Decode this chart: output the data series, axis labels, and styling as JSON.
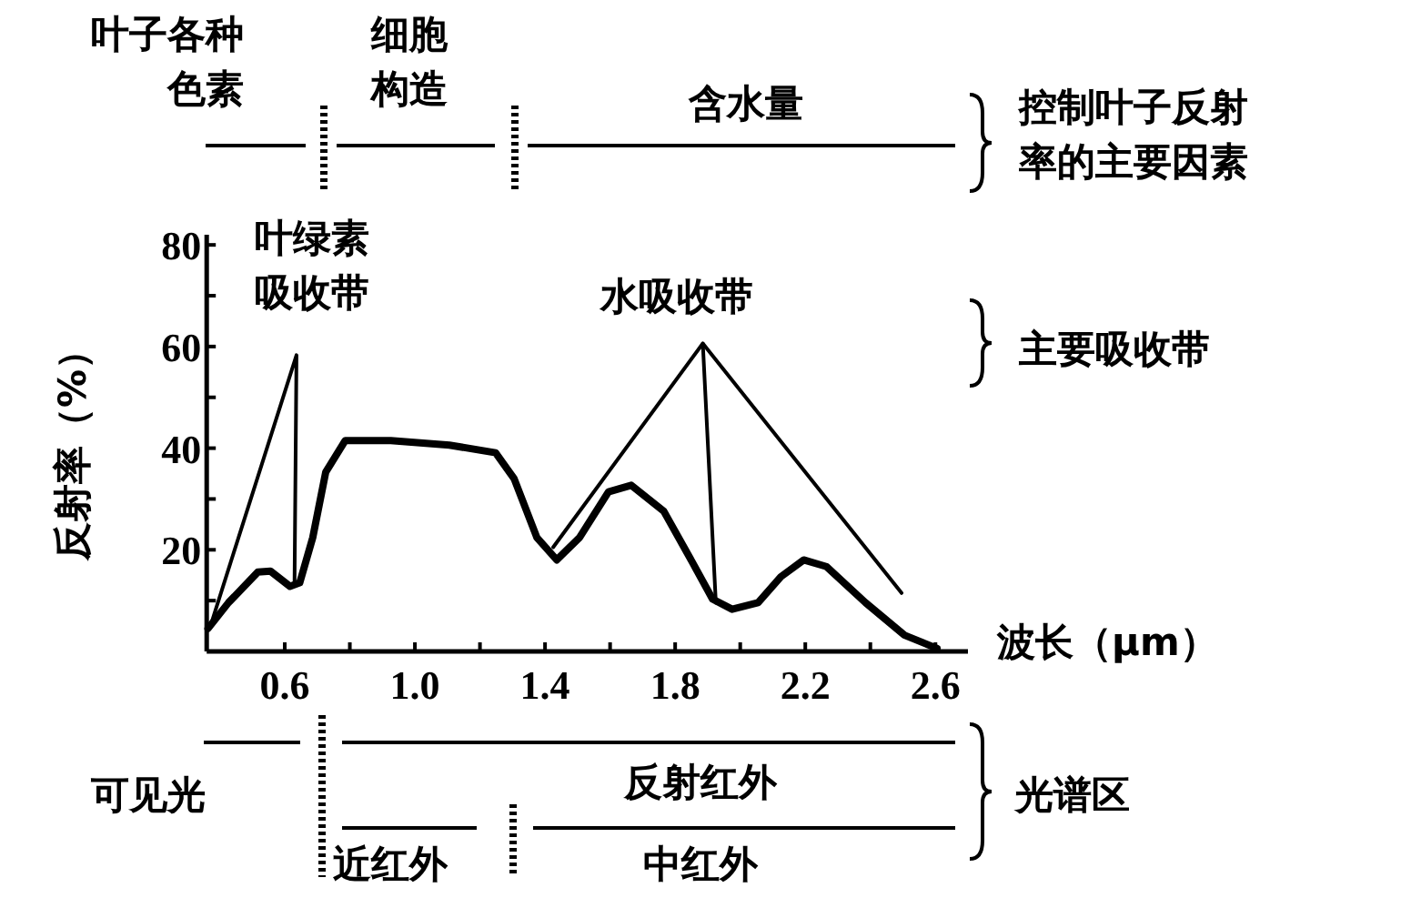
{
  "chart_data": {
    "type": "line",
    "xlabel": "波长（μm）",
    "ylabel": "反射率（%）",
    "xlim": [
      0.36,
      2.7
    ],
    "ylim": [
      0,
      82
    ],
    "xticks": [
      0.6,
      {
        "value": 0.8,
        "label": null
      },
      {
        "value": 1,
        "label": "1.0"
      },
      {
        "value": 1.2,
        "label": null
      },
      1.4,
      {
        "value": 1.6,
        "label": null
      },
      1.8,
      {
        "value": 2,
        "label": null
      },
      2.2,
      {
        "value": 2.4,
        "label": null
      },
      2.6
    ],
    "yticks": [
      {
        "value": 10,
        "label": null
      },
      20,
      {
        "value": 30,
        "label": null
      },
      40,
      {
        "value": 50,
        "label": null
      },
      60,
      {
        "value": 70,
        "label": null
      },
      80
    ],
    "series": [
      {
        "color": "#000000",
        "x": [
          0.364,
          0.427,
          0.517,
          0.556,
          0.616,
          0.646,
          0.686,
          0.726,
          0.786,
          0.926,
          1.106,
          1.248,
          1.305,
          1.375,
          1.436,
          1.506,
          1.595,
          1.665,
          1.765,
          1.855,
          1.915,
          1.975,
          2.055,
          2.125,
          2.195,
          2.265,
          2.385,
          2.505,
          2.605
        ],
        "values": [
          4.5,
          9.6,
          15.6,
          15.8,
          12.8,
          13.5,
          22.4,
          35.3,
          41.5,
          41.5,
          40.6,
          39.1,
          34,
          22.4,
          18,
          22.4,
          31.4,
          32.7,
          27.6,
          17.3,
          10.3,
          8.3,
          9.6,
          14.7,
          18,
          16.7,
          9.6,
          3.2,
          0.6
        ]
      },
      {
        "color": "#000000",
        "x": [
          0.372,
          0.636,
          0.63
        ],
        "values": [
          5.1,
          58.3,
          13.5
        ]
      },
      {
        "color": "#000000",
        "x": [
          1.425,
          1.885,
          2.496
        ],
        "values": [
          20.5,
          60.6,
          11.5
        ]
      },
      {
        "color": "#000000",
        "x": [
          1.885,
          1.925
        ],
        "values": [
          60.6,
          9.6
        ]
      }
    ],
    "annotations": [
      "叶子各种色素",
      "细胞构造",
      "含水量",
      "控制叶子反射率的主要因素",
      "叶绿素吸收带",
      "水吸收带",
      "主要吸收带",
      "可见光",
      "反射红外",
      "近红外",
      "中红外",
      "光谱区"
    ]
  }
}
